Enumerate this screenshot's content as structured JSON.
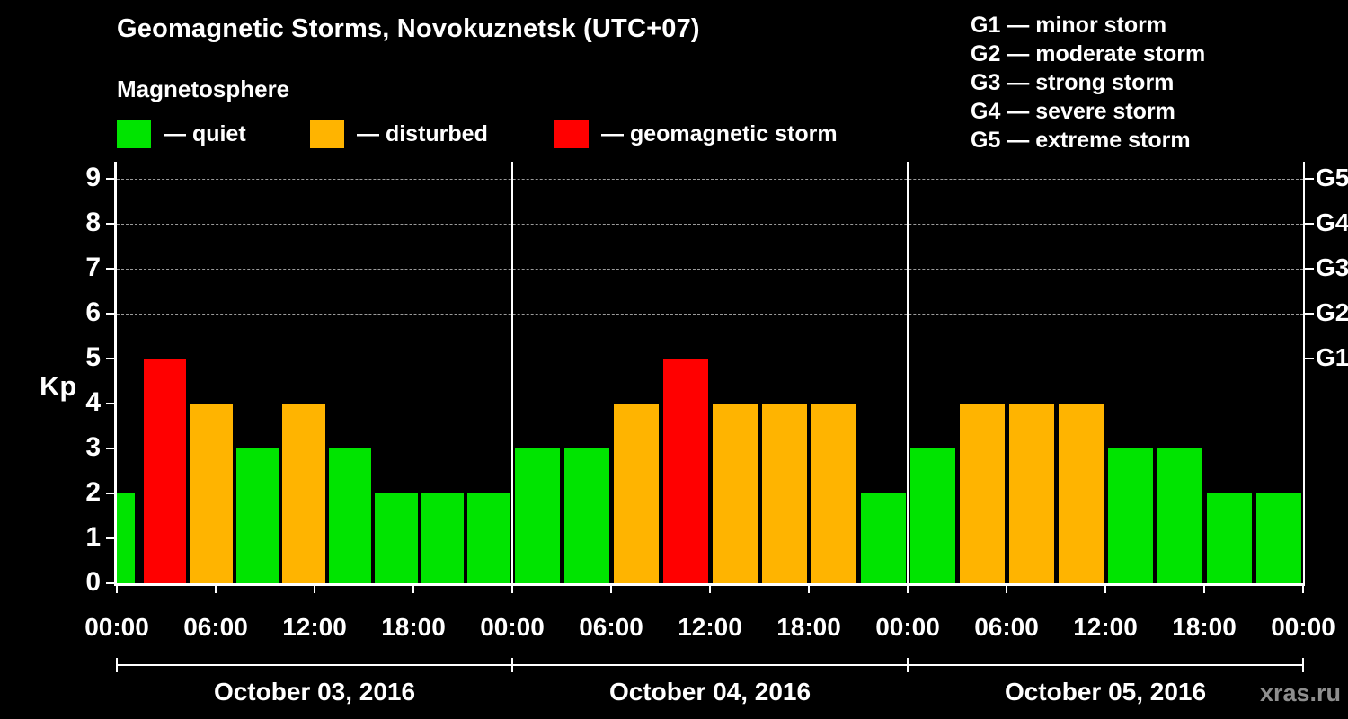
{
  "title": "Geomagnetic Storms, Novokuznetsk (UTC+07)",
  "subtitle": "Magnetosphere",
  "legend": {
    "items": [
      {
        "key": "quiet",
        "label": "— quiet"
      },
      {
        "key": "disturbed",
        "label": "— disturbed"
      },
      {
        "key": "storm",
        "label": "— geomagnetic storm"
      }
    ]
  },
  "g_scale_legend": [
    "G1 — minor storm",
    "G2 — moderate storm",
    "G3 — strong storm",
    "G4 — severe storm",
    "G5 — extreme storm"
  ],
  "watermark": "xras.ru",
  "chart_data": {
    "type": "bar",
    "title": "Geomagnetic Storms, Novokuznetsk (UTC+07)",
    "subtitle": "Magnetosphere",
    "ylabel": "Kp",
    "ylim": [
      0,
      9
    ],
    "yticks": [
      0,
      1,
      2,
      3,
      4,
      5,
      6,
      7,
      8,
      9
    ],
    "gridlines_kp": [
      5,
      6,
      7,
      8,
      9
    ],
    "right_axis": [
      {
        "label": "G5",
        "kp": 9
      },
      {
        "label": "G4",
        "kp": 8
      },
      {
        "label": "G3",
        "kp": 7
      },
      {
        "label": "G2",
        "kp": 6
      },
      {
        "label": "G1",
        "kp": 5
      }
    ],
    "x_tick_labels": [
      "00:00",
      "06:00",
      "12:00",
      "18:00",
      "00:00",
      "06:00",
      "12:00",
      "18:00",
      "00:00",
      "06:00",
      "12:00",
      "18:00",
      "00:00"
    ],
    "interval_hours": 3,
    "days": [
      {
        "date": "October 03, 2016",
        "values": [
          2,
          5,
          4,
          3,
          4,
          3,
          2,
          2,
          2
        ],
        "first_bar_clipped": true
      },
      {
        "date": "October 04, 2016",
        "values": [
          3,
          3,
          4,
          5,
          4,
          4,
          4,
          2
        ],
        "first_bar_clipped": false
      },
      {
        "date": "October 05, 2016",
        "values": [
          3,
          4,
          4,
          4,
          3,
          3,
          2,
          2
        ],
        "first_bar_clipped": false
      }
    ],
    "color_rule": {
      "quiet_kp_max": 3,
      "disturbed_kp": 4,
      "storm_kp_min": 5
    },
    "colors": {
      "quiet": "#00e400",
      "disturbed": "#ffb400",
      "storm": "#ff0000",
      "axis": "#ffffff",
      "grid": "#9b9b9b",
      "background": "#000000",
      "text": "#ffffff",
      "watermark": "#8e8e8e"
    },
    "legend_position": "top-left",
    "grid": "dashed horizontal lines at Kp 5–9 only"
  }
}
